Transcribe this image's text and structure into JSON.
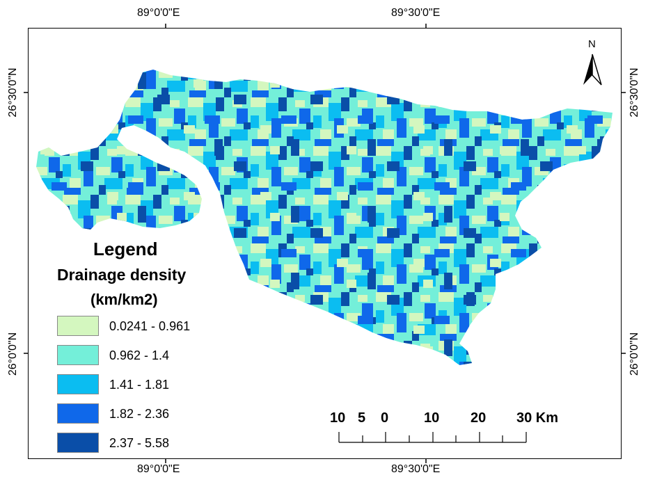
{
  "coords": {
    "top_left": "89°0'0\"E",
    "top_right": "89°30'0\"E",
    "bottom_left": "89°0'0\"E",
    "bottom_right": "89°30'0\"E",
    "left_top": "26°30'0\"N",
    "left_bottom": "26°0'0\"N",
    "right_top": "26°30'0\"N",
    "right_bottom": "26°0'0\"N"
  },
  "north_arrow": {
    "label": "N",
    "icon": "north-arrow-icon"
  },
  "legend": {
    "title": "Legend",
    "subtitle": "Drainage density",
    "units": "(km/km2)",
    "classes": [
      {
        "label": "0.0241 - 0.961",
        "color": "#d4f7bf"
      },
      {
        "label": "0.962 - 1.4",
        "color": "#74efd9"
      },
      {
        "label": "1.41 - 1.81",
        "color": "#0bbdf1"
      },
      {
        "label": "1.82 - 2.36",
        "color": "#0f68ea"
      },
      {
        "label": "2.37 - 5.58",
        "color": "#0a4ea8"
      }
    ]
  },
  "scale_bar": {
    "labels": [
      "10",
      "5",
      "0",
      "10",
      "20",
      "30 Km"
    ]
  }
}
